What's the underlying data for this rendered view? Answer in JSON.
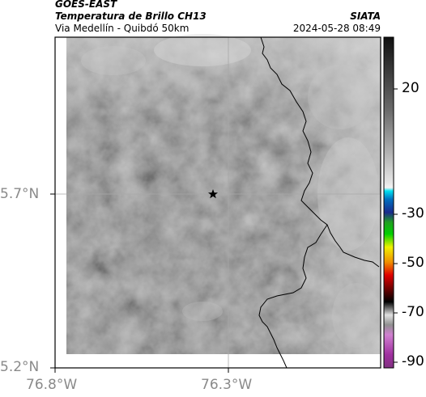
{
  "header": {
    "satellite": "GOES-EAST",
    "product": "Temperatura de Brillo CH13",
    "region": "Via Medellín - Quibdó 50km",
    "organization": "SIATA",
    "timestamp": "2024-05-28 08:49"
  },
  "map": {
    "lat_ticks": [
      "5.7°N",
      "5.2°N"
    ],
    "lon_ticks": [
      "76.8°W",
      "76.3°W"
    ],
    "marker": "star-icon"
  },
  "colorbar": {
    "labels": [
      "20",
      "-30",
      "-50",
      "-70",
      "-90"
    ],
    "colors": {
      "warm_gray": "#8c8c8c",
      "cyan": "#00b8d8",
      "blue": "#1a2a8c",
      "green": "#00c000",
      "yellow": "#f0f000",
      "red": "#e00000",
      "black": "#000000",
      "magenta": "#c040c0"
    }
  }
}
